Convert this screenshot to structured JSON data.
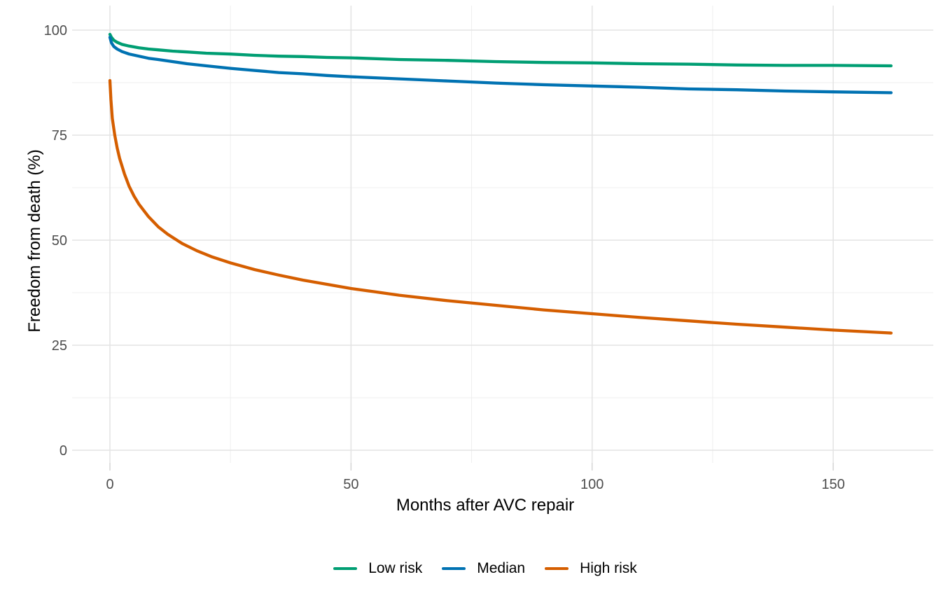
{
  "chart_data": {
    "type": "line",
    "title": "",
    "xlabel": "Months after AVC repair",
    "ylabel": "Freedom from death (%)",
    "xlim": [
      0,
      162
    ],
    "ylim": [
      0,
      100
    ],
    "x_ticks": [
      0,
      50,
      100,
      150
    ],
    "y_ticks": [
      0,
      25,
      50,
      75,
      100
    ],
    "x_minor_ticks": [
      25,
      75,
      125
    ],
    "y_minor_ticks": [
      12.5,
      37.5,
      62.5,
      87.5
    ],
    "grid": true,
    "legend_position": "bottom",
    "colors": {
      "low_risk": "#009E73",
      "median": "#0072B2",
      "high_risk": "#D55E00",
      "grid_major": "#e3e3e3",
      "grid_minor": "#efefef",
      "tick_text": "#4d4d4d"
    },
    "series": [
      {
        "name": "Low risk",
        "color": "#009E73",
        "points": [
          [
            0,
            99.0
          ],
          [
            0.3,
            98.3
          ],
          [
            0.8,
            97.6
          ],
          [
            1.5,
            97.1
          ],
          [
            2.5,
            96.6
          ],
          [
            4,
            96.2
          ],
          [
            6,
            95.8
          ],
          [
            8,
            95.5
          ],
          [
            10,
            95.3
          ],
          [
            13,
            95.0
          ],
          [
            16,
            94.8
          ],
          [
            20,
            94.5
          ],
          [
            25,
            94.3
          ],
          [
            30,
            94.0
          ],
          [
            35,
            93.8
          ],
          [
            40,
            93.7
          ],
          [
            45,
            93.5
          ],
          [
            50,
            93.4
          ],
          [
            60,
            93.0
          ],
          [
            70,
            92.8
          ],
          [
            80,
            92.5
          ],
          [
            90,
            92.3
          ],
          [
            100,
            92.2
          ],
          [
            110,
            92.0
          ],
          [
            120,
            91.9
          ],
          [
            130,
            91.7
          ],
          [
            140,
            91.6
          ],
          [
            150,
            91.6
          ],
          [
            162,
            91.5
          ]
        ]
      },
      {
        "name": "Median",
        "color": "#0072B2",
        "points": [
          [
            0,
            98.3
          ],
          [
            0.3,
            97.0
          ],
          [
            0.8,
            96.1
          ],
          [
            1.5,
            95.5
          ],
          [
            2.5,
            94.9
          ],
          [
            4,
            94.3
          ],
          [
            6,
            93.8
          ],
          [
            8,
            93.3
          ],
          [
            10,
            93.0
          ],
          [
            13,
            92.5
          ],
          [
            16,
            92.0
          ],
          [
            20,
            91.5
          ],
          [
            25,
            90.9
          ],
          [
            30,
            90.4
          ],
          [
            35,
            89.9
          ],
          [
            40,
            89.6
          ],
          [
            45,
            89.2
          ],
          [
            50,
            88.9
          ],
          [
            60,
            88.4
          ],
          [
            70,
            87.9
          ],
          [
            80,
            87.4
          ],
          [
            90,
            87.0
          ],
          [
            100,
            86.7
          ],
          [
            110,
            86.4
          ],
          [
            120,
            86.0
          ],
          [
            130,
            85.8
          ],
          [
            140,
            85.5
          ],
          [
            150,
            85.3
          ],
          [
            162,
            85.1
          ]
        ]
      },
      {
        "name": "High risk",
        "color": "#D55E00",
        "points": [
          [
            0,
            88.0
          ],
          [
            0.2,
            83.5
          ],
          [
            0.5,
            79.0
          ],
          [
            1,
            75.0
          ],
          [
            1.5,
            72.0
          ],
          [
            2,
            69.5
          ],
          [
            3,
            65.8
          ],
          [
            4,
            62.8
          ],
          [
            5,
            60.5
          ],
          [
            6,
            58.6
          ],
          [
            8,
            55.6
          ],
          [
            10,
            53.2
          ],
          [
            12,
            51.4
          ],
          [
            15,
            49.2
          ],
          [
            18,
            47.5
          ],
          [
            21,
            46.1
          ],
          [
            25,
            44.6
          ],
          [
            30,
            43.0
          ],
          [
            35,
            41.7
          ],
          [
            40,
            40.5
          ],
          [
            45,
            39.5
          ],
          [
            50,
            38.5
          ],
          [
            55,
            37.7
          ],
          [
            60,
            36.9
          ],
          [
            70,
            35.6
          ],
          [
            80,
            34.5
          ],
          [
            90,
            33.4
          ],
          [
            100,
            32.5
          ],
          [
            110,
            31.6
          ],
          [
            120,
            30.8
          ],
          [
            130,
            30.0
          ],
          [
            140,
            29.3
          ],
          [
            150,
            28.6
          ],
          [
            162,
            27.9
          ]
        ]
      }
    ]
  },
  "legend": {
    "items": [
      {
        "label": "Low risk",
        "color": "#009E73"
      },
      {
        "label": "Median",
        "color": "#0072B2"
      },
      {
        "label": "High risk",
        "color": "#D55E00"
      }
    ]
  }
}
